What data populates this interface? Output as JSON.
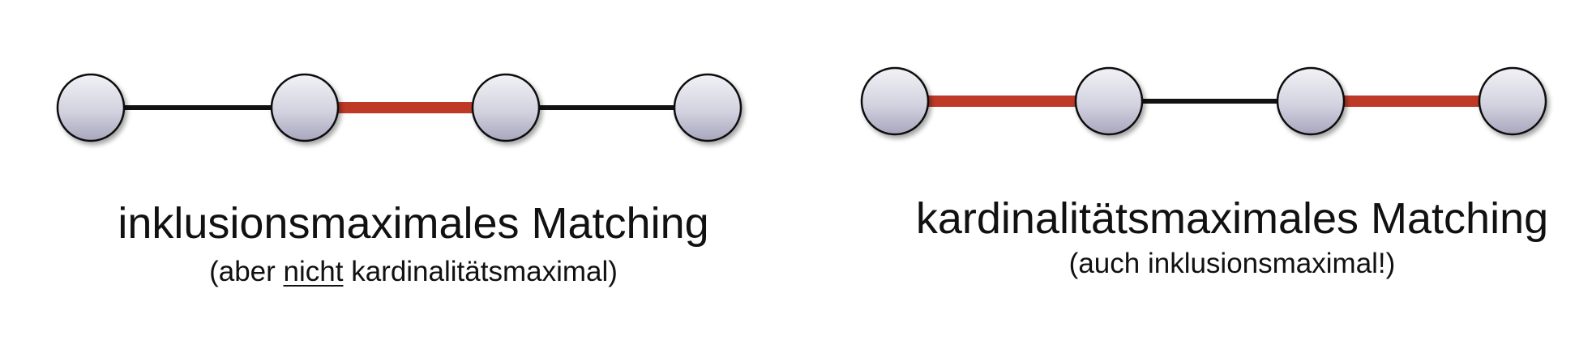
{
  "colors": {
    "matched_edge": "#be3a26",
    "unmatched_edge": "#111111",
    "node_stroke": "#111111"
  },
  "left_diagram": {
    "nodes": [
      "v1",
      "v2",
      "v3",
      "v4"
    ],
    "edges": [
      {
        "from": "v1",
        "to": "v2",
        "matched": false
      },
      {
        "from": "v2",
        "to": "v3",
        "matched": true
      },
      {
        "from": "v3",
        "to": "v4",
        "matched": false
      }
    ],
    "title": "inklusionsmaximales Matching",
    "subtitle_prefix": "(aber ",
    "subtitle_emphasis": "nicht",
    "subtitle_suffix": " kardinalitätsmaximal)"
  },
  "right_diagram": {
    "nodes": [
      "v1",
      "v2",
      "v3",
      "v4"
    ],
    "edges": [
      {
        "from": "v1",
        "to": "v2",
        "matched": true
      },
      {
        "from": "v2",
        "to": "v3",
        "matched": false
      },
      {
        "from": "v3",
        "to": "v4",
        "matched": true
      }
    ],
    "title": "kardinalitätsmaximales Matching",
    "subtitle": "(auch inklusionsmaximal!)"
  }
}
